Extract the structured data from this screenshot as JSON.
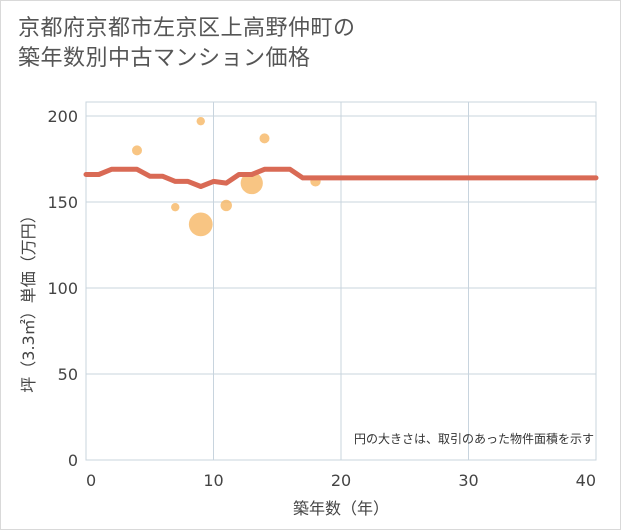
{
  "title_lines": [
    "京都府京都市左京区上高野仲町の",
    "築年数別中古マンション価格"
  ],
  "chart_data": {
    "type": "scatter",
    "title": "京都府京都市左京区上高野仲町の築年数別中古マンション価格",
    "xlabel": "築年数（年）",
    "ylabel": "坪（3.3㎡）単価（万円）",
    "xlim": [
      0,
      40
    ],
    "ylim": [
      0,
      200
    ],
    "xticks": [
      0,
      10,
      20,
      30,
      40
    ],
    "yticks": [
      0,
      50,
      100,
      150,
      200
    ],
    "grid": true,
    "note": "円の大きさは、取引のあった物件面積を示す",
    "bubbles": [
      {
        "x": 4,
        "y": 180,
        "size": 1.0
      },
      {
        "x": 7,
        "y": 147,
        "size": 0.7
      },
      {
        "x": 9,
        "y": 197,
        "size": 0.7
      },
      {
        "x": 9,
        "y": 137,
        "size": 3.2
      },
      {
        "x": 11,
        "y": 148,
        "size": 1.3
      },
      {
        "x": 13,
        "y": 161,
        "size": 2.6
      },
      {
        "x": 14,
        "y": 187,
        "size": 1.0
      },
      {
        "x": 18,
        "y": 162,
        "size": 1.1
      }
    ],
    "trend_line": {
      "x": [
        0,
        1,
        2,
        3,
        4,
        5,
        6,
        7,
        8,
        9,
        10,
        11,
        12,
        13,
        14,
        15,
        16,
        17,
        18,
        19,
        20,
        25,
        30,
        35,
        40
      ],
      "y": [
        166,
        166,
        169,
        169,
        169,
        165,
        165,
        162,
        162,
        159,
        162,
        161,
        166,
        166,
        169,
        169,
        169,
        164,
        164,
        164,
        164,
        164,
        164,
        164,
        164
      ]
    },
    "colors": {
      "bubble": "#f5b25a",
      "line": "#d96a55",
      "grid": "#c8d4de"
    }
  }
}
